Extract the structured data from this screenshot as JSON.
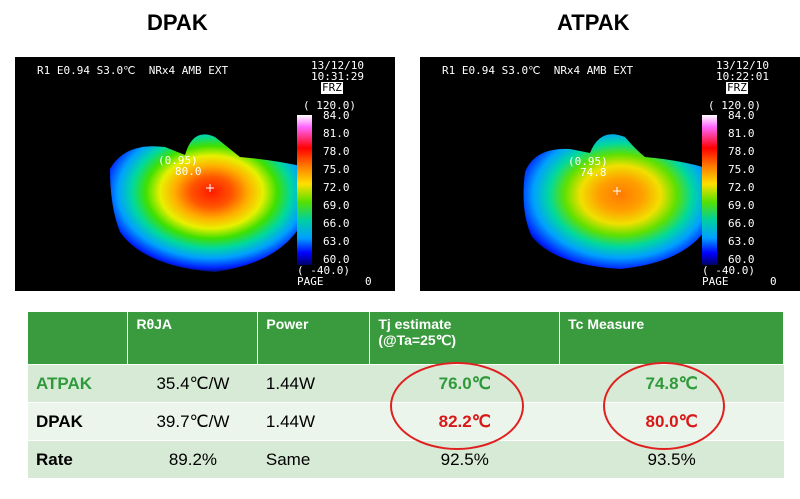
{
  "left_panel": {
    "title": "DPAK",
    "header_line1": "R1 E0.94 S3.0℃  NRx4 AMB EXT",
    "date": "13/12/10",
    "time": "10:31:29",
    "frz": "FRZ",
    "range_top": "( 120.0)",
    "spot_label": "(0.95)",
    "spot_value": "80.0",
    "scale_ticks": [
      "84.0",
      "81.0",
      "78.0",
      "75.0",
      "72.0",
      "69.0",
      "66.0",
      "63.0",
      "60.0"
    ],
    "range_bottom": "( -40.0)",
    "page_label": "PAGE",
    "page_num": "0"
  },
  "right_panel": {
    "title": "ATPAK",
    "header_line1": "R1 E0.94 S3.0℃  NRx4 AMB EXT",
    "date": "13/12/10",
    "time": "10:22:01",
    "frz": "FRZ",
    "range_top": "( 120.0)",
    "spot_label": "(0.95)",
    "spot_value": "74.8",
    "scale_ticks": [
      "84.0",
      "81.0",
      "78.0",
      "75.0",
      "72.0",
      "69.0",
      "66.0",
      "63.0",
      "60.0"
    ],
    "range_bottom": "( -40.0)",
    "page_label": "PAGE",
    "page_num": "0"
  },
  "table": {
    "headers": [
      "",
      "RθJA",
      "Power",
      "Tj estimate\n(@Ta=25℃)",
      "Tc Measure"
    ],
    "rows": [
      [
        "ATPAK",
        "35.4℃/W",
        "1.44W",
        "76.0℃",
        "74.8℃"
      ],
      [
        "DPAK",
        "39.7℃/W",
        "1.44W",
        "82.2℃",
        "80.0℃"
      ],
      [
        "Rate",
        "89.2%",
        "Same",
        "92.5%",
        "93.5%"
      ]
    ]
  },
  "colors": {
    "header_green": "#3a9a3e",
    "row_green_text": "#2f9a3a",
    "highlight_red": "#d81818"
  }
}
